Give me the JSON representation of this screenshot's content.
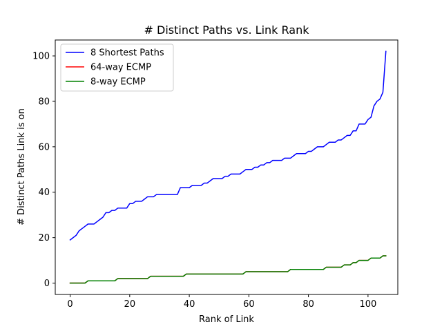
{
  "chart_data": {
    "type": "line",
    "title": "# Distinct Paths vs. Link Rank",
    "xlabel": "Rank of Link",
    "ylabel": "# Distinct Paths Link is on",
    "xlim": [
      -5,
      110
    ],
    "ylim": [
      -5,
      107
    ],
    "xticks": [
      0,
      20,
      40,
      60,
      80,
      100
    ],
    "yticks": [
      0,
      20,
      40,
      60,
      80,
      100
    ],
    "grid": false,
    "legend_position": "top-left",
    "series": [
      {
        "name": "8 Shortest Paths",
        "color": "#0000ff",
        "points": [
          [
            0,
            19
          ],
          [
            1,
            20
          ],
          [
            2,
            21
          ],
          [
            3,
            23
          ],
          [
            4,
            24
          ],
          [
            5,
            25
          ],
          [
            6,
            26
          ],
          [
            7,
            26
          ],
          [
            8,
            26
          ],
          [
            9,
            27
          ],
          [
            10,
            28
          ],
          [
            11,
            29
          ],
          [
            12,
            31
          ],
          [
            13,
            31
          ],
          [
            14,
            32
          ],
          [
            15,
            32
          ],
          [
            16,
            33
          ],
          [
            17,
            33
          ],
          [
            18,
            33
          ],
          [
            19,
            33
          ],
          [
            20,
            35
          ],
          [
            21,
            35
          ],
          [
            22,
            36
          ],
          [
            23,
            36
          ],
          [
            24,
            36
          ],
          [
            25,
            37
          ],
          [
            26,
            38
          ],
          [
            27,
            38
          ],
          [
            28,
            38
          ],
          [
            29,
            39
          ],
          [
            30,
            39
          ],
          [
            31,
            39
          ],
          [
            32,
            39
          ],
          [
            33,
            39
          ],
          [
            34,
            39
          ],
          [
            35,
            39
          ],
          [
            36,
            39
          ],
          [
            37,
            42
          ],
          [
            38,
            42
          ],
          [
            39,
            42
          ],
          [
            40,
            42
          ],
          [
            41,
            43
          ],
          [
            42,
            43
          ],
          [
            43,
            43
          ],
          [
            44,
            43
          ],
          [
            45,
            44
          ],
          [
            46,
            44
          ],
          [
            47,
            45
          ],
          [
            48,
            46
          ],
          [
            49,
            46
          ],
          [
            50,
            46
          ],
          [
            51,
            46
          ],
          [
            52,
            47
          ],
          [
            53,
            47
          ],
          [
            54,
            48
          ],
          [
            55,
            48
          ],
          [
            56,
            48
          ],
          [
            57,
            48
          ],
          [
            58,
            49
          ],
          [
            59,
            50
          ],
          [
            60,
            50
          ],
          [
            61,
            50
          ],
          [
            62,
            51
          ],
          [
            63,
            51
          ],
          [
            64,
            52
          ],
          [
            65,
            52
          ],
          [
            66,
            53
          ],
          [
            67,
            53
          ],
          [
            68,
            54
          ],
          [
            69,
            54
          ],
          [
            70,
            54
          ],
          [
            71,
            54
          ],
          [
            72,
            55
          ],
          [
            73,
            55
          ],
          [
            74,
            55
          ],
          [
            75,
            56
          ],
          [
            76,
            57
          ],
          [
            77,
            57
          ],
          [
            78,
            57
          ],
          [
            79,
            57
          ],
          [
            80,
            58
          ],
          [
            81,
            58
          ],
          [
            82,
            59
          ],
          [
            83,
            60
          ],
          [
            84,
            60
          ],
          [
            85,
            60
          ],
          [
            86,
            61
          ],
          [
            87,
            62
          ],
          [
            88,
            62
          ],
          [
            89,
            62
          ],
          [
            90,
            63
          ],
          [
            91,
            63
          ],
          [
            92,
            64
          ],
          [
            93,
            65
          ],
          [
            94,
            65
          ],
          [
            95,
            67
          ],
          [
            96,
            67
          ],
          [
            97,
            70
          ],
          [
            98,
            70
          ],
          [
            99,
            70
          ],
          [
            100,
            72
          ],
          [
            101,
            73
          ],
          [
            102,
            78
          ],
          [
            103,
            80
          ],
          [
            104,
            81
          ],
          [
            105,
            84
          ],
          [
            106,
            102
          ]
        ]
      },
      {
        "name": "64-way ECMP",
        "color": "#ff0000",
        "points": [
          [
            0,
            0
          ],
          [
            1,
            0
          ],
          [
            2,
            0
          ],
          [
            3,
            0
          ],
          [
            4,
            0
          ],
          [
            5,
            0
          ],
          [
            6,
            1
          ],
          [
            7,
            1
          ],
          [
            8,
            1
          ],
          [
            9,
            1
          ],
          [
            10,
            1
          ],
          [
            11,
            1
          ],
          [
            12,
            1
          ],
          [
            13,
            1
          ],
          [
            14,
            1
          ],
          [
            15,
            1
          ],
          [
            16,
            2
          ],
          [
            17,
            2
          ],
          [
            18,
            2
          ],
          [
            19,
            2
          ],
          [
            20,
            2
          ],
          [
            21,
            2
          ],
          [
            22,
            2
          ],
          [
            23,
            2
          ],
          [
            24,
            2
          ],
          [
            25,
            2
          ],
          [
            26,
            2
          ],
          [
            27,
            3
          ],
          [
            28,
            3
          ],
          [
            29,
            3
          ],
          [
            30,
            3
          ],
          [
            31,
            3
          ],
          [
            32,
            3
          ],
          [
            33,
            3
          ],
          [
            34,
            3
          ],
          [
            35,
            3
          ],
          [
            36,
            3
          ],
          [
            37,
            3
          ],
          [
            38,
            3
          ],
          [
            39,
            4
          ],
          [
            40,
            4
          ],
          [
            41,
            4
          ],
          [
            42,
            4
          ],
          [
            43,
            4
          ],
          [
            44,
            4
          ],
          [
            45,
            4
          ],
          [
            46,
            4
          ],
          [
            47,
            4
          ],
          [
            48,
            4
          ],
          [
            49,
            4
          ],
          [
            50,
            4
          ],
          [
            51,
            4
          ],
          [
            52,
            4
          ],
          [
            53,
            4
          ],
          [
            54,
            4
          ],
          [
            55,
            4
          ],
          [
            56,
            4
          ],
          [
            57,
            4
          ],
          [
            58,
            4
          ],
          [
            59,
            5
          ],
          [
            60,
            5
          ],
          [
            61,
            5
          ],
          [
            62,
            5
          ],
          [
            63,
            5
          ],
          [
            64,
            5
          ],
          [
            65,
            5
          ],
          [
            66,
            5
          ],
          [
            67,
            5
          ],
          [
            68,
            5
          ],
          [
            69,
            5
          ],
          [
            70,
            5
          ],
          [
            71,
            5
          ],
          [
            72,
            5
          ],
          [
            73,
            5
          ],
          [
            74,
            6
          ],
          [
            75,
            6
          ],
          [
            76,
            6
          ],
          [
            77,
            6
          ],
          [
            78,
            6
          ],
          [
            79,
            6
          ],
          [
            80,
            6
          ],
          [
            81,
            6
          ],
          [
            82,
            6
          ],
          [
            83,
            6
          ],
          [
            84,
            6
          ],
          [
            85,
            6
          ],
          [
            86,
            7
          ],
          [
            87,
            7
          ],
          [
            88,
            7
          ],
          [
            89,
            7
          ],
          [
            90,
            7
          ],
          [
            91,
            7
          ],
          [
            92,
            8
          ],
          [
            93,
            8
          ],
          [
            94,
            8
          ],
          [
            95,
            9
          ],
          [
            96,
            9
          ],
          [
            97,
            10
          ],
          [
            98,
            10
          ],
          [
            99,
            10
          ],
          [
            100,
            10
          ],
          [
            101,
            11
          ],
          [
            102,
            11
          ],
          [
            103,
            11
          ],
          [
            104,
            11
          ],
          [
            105,
            12
          ],
          [
            106,
            12
          ]
        ]
      },
      {
        "name": "8-way ECMP",
        "color": "#008000",
        "points": [
          [
            0,
            0
          ],
          [
            1,
            0
          ],
          [
            2,
            0
          ],
          [
            3,
            0
          ],
          [
            4,
            0
          ],
          [
            5,
            0
          ],
          [
            6,
            1
          ],
          [
            7,
            1
          ],
          [
            8,
            1
          ],
          [
            9,
            1
          ],
          [
            10,
            1
          ],
          [
            11,
            1
          ],
          [
            12,
            1
          ],
          [
            13,
            1
          ],
          [
            14,
            1
          ],
          [
            15,
            1
          ],
          [
            16,
            2
          ],
          [
            17,
            2
          ],
          [
            18,
            2
          ],
          [
            19,
            2
          ],
          [
            20,
            2
          ],
          [
            21,
            2
          ],
          [
            22,
            2
          ],
          [
            23,
            2
          ],
          [
            24,
            2
          ],
          [
            25,
            2
          ],
          [
            26,
            2
          ],
          [
            27,
            3
          ],
          [
            28,
            3
          ],
          [
            29,
            3
          ],
          [
            30,
            3
          ],
          [
            31,
            3
          ],
          [
            32,
            3
          ],
          [
            33,
            3
          ],
          [
            34,
            3
          ],
          [
            35,
            3
          ],
          [
            36,
            3
          ],
          [
            37,
            3
          ],
          [
            38,
            3
          ],
          [
            39,
            4
          ],
          [
            40,
            4
          ],
          [
            41,
            4
          ],
          [
            42,
            4
          ],
          [
            43,
            4
          ],
          [
            44,
            4
          ],
          [
            45,
            4
          ],
          [
            46,
            4
          ],
          [
            47,
            4
          ],
          [
            48,
            4
          ],
          [
            49,
            4
          ],
          [
            50,
            4
          ],
          [
            51,
            4
          ],
          [
            52,
            4
          ],
          [
            53,
            4
          ],
          [
            54,
            4
          ],
          [
            55,
            4
          ],
          [
            56,
            4
          ],
          [
            57,
            4
          ],
          [
            58,
            4
          ],
          [
            59,
            5
          ],
          [
            60,
            5
          ],
          [
            61,
            5
          ],
          [
            62,
            5
          ],
          [
            63,
            5
          ],
          [
            64,
            5
          ],
          [
            65,
            5
          ],
          [
            66,
            5
          ],
          [
            67,
            5
          ],
          [
            68,
            5
          ],
          [
            69,
            5
          ],
          [
            70,
            5
          ],
          [
            71,
            5
          ],
          [
            72,
            5
          ],
          [
            73,
            5
          ],
          [
            74,
            6
          ],
          [
            75,
            6
          ],
          [
            76,
            6
          ],
          [
            77,
            6
          ],
          [
            78,
            6
          ],
          [
            79,
            6
          ],
          [
            80,
            6
          ],
          [
            81,
            6
          ],
          [
            82,
            6
          ],
          [
            83,
            6
          ],
          [
            84,
            6
          ],
          [
            85,
            6
          ],
          [
            86,
            7
          ],
          [
            87,
            7
          ],
          [
            88,
            7
          ],
          [
            89,
            7
          ],
          [
            90,
            7
          ],
          [
            91,
            7
          ],
          [
            92,
            8
          ],
          [
            93,
            8
          ],
          [
            94,
            8
          ],
          [
            95,
            9
          ],
          [
            96,
            9
          ],
          [
            97,
            10
          ],
          [
            98,
            10
          ],
          [
            99,
            10
          ],
          [
            100,
            10
          ],
          [
            101,
            11
          ],
          [
            102,
            11
          ],
          [
            103,
            11
          ],
          [
            104,
            11
          ],
          [
            105,
            12
          ],
          [
            106,
            12
          ]
        ]
      }
    ]
  }
}
